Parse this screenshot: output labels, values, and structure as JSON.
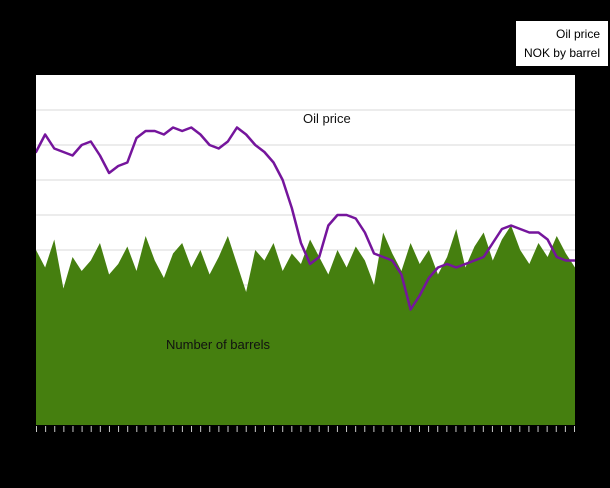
{
  "legend": {
    "line1": "Oil price",
    "line2": "NOK by barrel"
  },
  "colors": {
    "background": "#000000",
    "plot_background": "#ffffff",
    "grid": "#d9d9d9",
    "tick": "#c8c8c8",
    "oil_price_line": "#75159c",
    "barrels_area": "#457f0f"
  },
  "chart_data": {
    "type": "combo",
    "title": "",
    "xlabel": "",
    "ylabel": "",
    "x_unit": "months (tick marks only, no visible tick labels)",
    "x_tick_count": 60,
    "grid": true,
    "legend_position": "top-right-outside",
    "ylim": [
      0,
      100
    ],
    "value_note": "no numeric axis labels visible; values estimated as percent of plot height",
    "series": [
      {
        "name": "Number of barrels",
        "type": "area",
        "color": "#457f0f",
        "values": [
          50,
          45,
          53,
          39,
          48,
          44,
          47,
          52,
          43,
          46,
          51,
          44,
          54,
          47,
          42,
          49,
          52,
          45,
          50,
          43,
          48,
          54,
          46,
          38,
          50,
          47,
          52,
          44,
          49,
          46,
          53,
          48,
          43,
          50,
          45,
          51,
          47,
          40,
          55,
          49,
          44,
          52,
          46,
          50,
          43,
          48,
          56,
          45,
          51,
          55,
          47,
          53,
          57,
          50,
          46,
          52,
          48,
          54,
          49,
          45
        ]
      },
      {
        "name": "Oil price",
        "type": "line",
        "color": "#75159c",
        "values": [
          78,
          83,
          79,
          78,
          77,
          80,
          81,
          77,
          72,
          74,
          75,
          82,
          84,
          84,
          83,
          85,
          84,
          85,
          83,
          80,
          79,
          81,
          85,
          83,
          80,
          78,
          75,
          70,
          62,
          52,
          46,
          48,
          57,
          60,
          60,
          59,
          55,
          49,
          48,
          47,
          43,
          33,
          37,
          42,
          45,
          46,
          45,
          46,
          47,
          48,
          52,
          56,
          57,
          56,
          55,
          55,
          53,
          48,
          47,
          47
        ]
      }
    ]
  }
}
